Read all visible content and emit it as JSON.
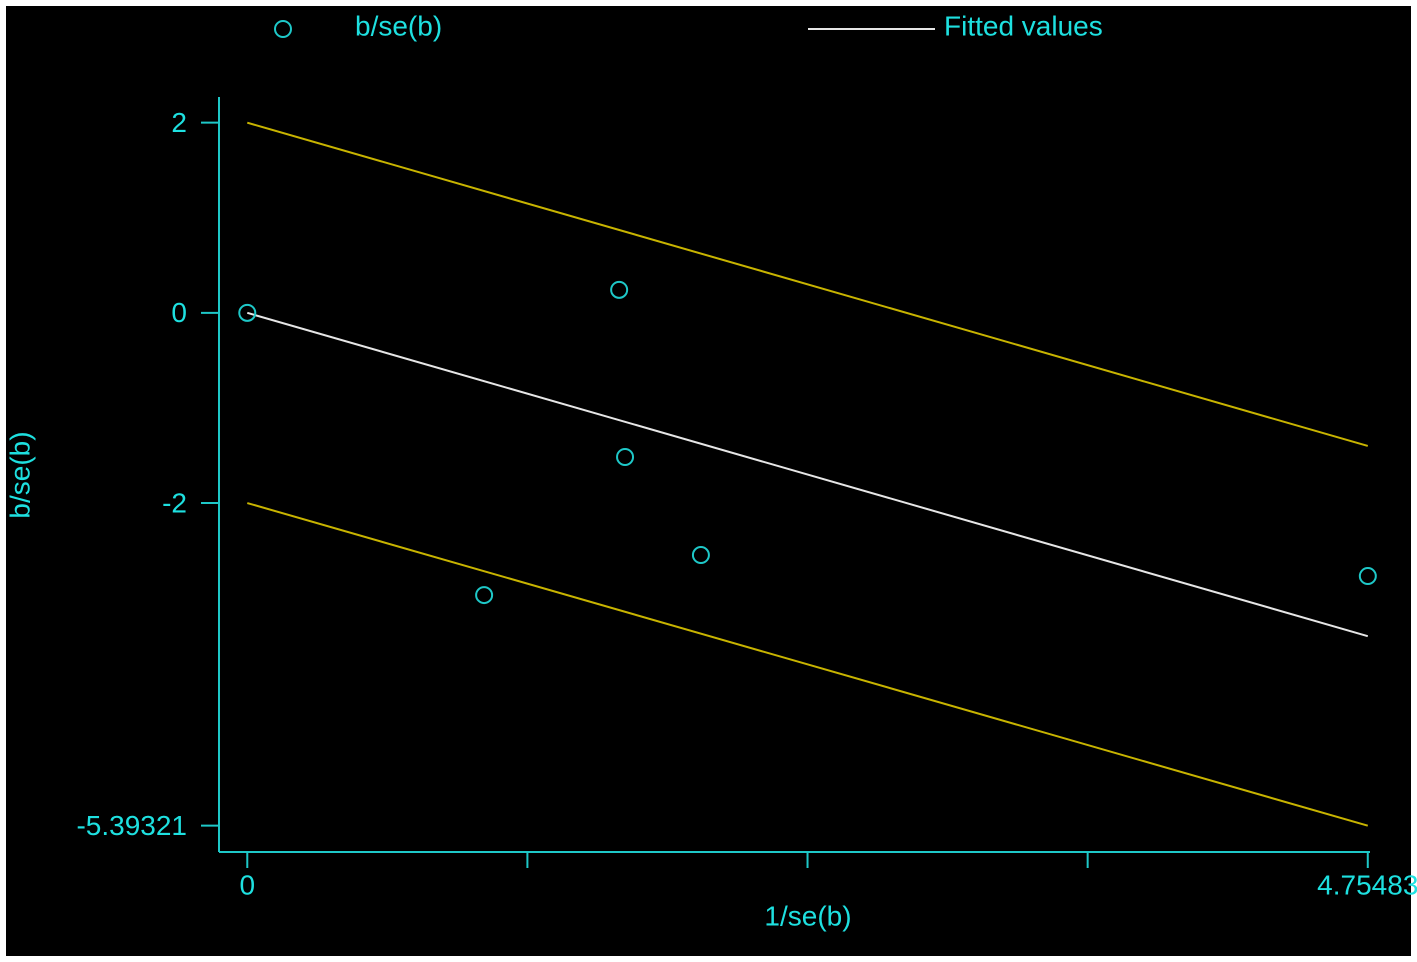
{
  "chart_data": {
    "type": "scatter",
    "x_label": "1/se(b)",
    "y_label": "b/se(b)",
    "xlim": [
      -0.12,
      4.76
    ],
    "ylim": [
      -5.67,
      2.27
    ],
    "xticks": [
      0,
      {
        "value": 1.18871,
        "label": null
      },
      {
        "value": 2.37742,
        "label": null
      },
      {
        "value": 3.56612,
        "label": null
      },
      4.75483
    ],
    "yticks": [
      2,
      0,
      -2,
      -5.39321
    ],
    "series": [
      {
        "name": "b/se(b)",
        "type": "scatter",
        "color": "#1ec8c8",
        "x": [
          0,
          1.578,
          1.603,
          1.005,
          1.925,
          4.755
        ],
        "values": [
          0,
          0.242,
          -1.516,
          -2.968,
          -2.547,
          -2.768
        ]
      },
      {
        "name": "Fitted values",
        "type": "line",
        "color": "#e6e6e6",
        "x": [
          0,
          4.75483
        ],
        "values": [
          0,
          -3.4
        ]
      },
      {
        "type": "line",
        "color": "#c8b400",
        "x": [
          0,
          4.75483
        ],
        "values": [
          2,
          -1.4
        ]
      },
      {
        "type": "line",
        "color": "#c8b400",
        "x": [
          0,
          4.75483
        ],
        "values": [
          -2,
          -5.39321
        ]
      }
    ]
  }
}
